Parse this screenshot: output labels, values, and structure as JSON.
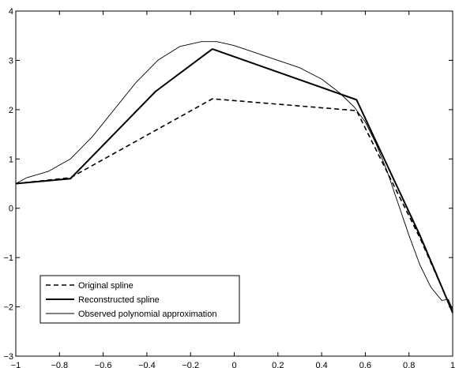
{
  "chart_data": {
    "type": "line",
    "title": "",
    "xlabel": "",
    "ylabel": "",
    "xlim": [
      -1,
      1
    ],
    "ylim": [
      -3,
      4
    ],
    "xticks": [
      -1,
      -0.8,
      -0.6,
      -0.4,
      -0.2,
      0,
      0.2,
      0.4,
      0.6,
      0.8,
      1
    ],
    "xtick_labels": [
      "−1",
      "−0.8",
      "−0.6",
      "−0.4",
      "−0.2",
      "0",
      "0.2",
      "0.4",
      "0.6",
      "0.8",
      "1"
    ],
    "yticks": [
      -3,
      -2,
      -1,
      0,
      1,
      2,
      3,
      4
    ],
    "ytick_labels": [
      "−3",
      "−2",
      "−1",
      "0",
      "1",
      "2",
      "3",
      "4"
    ],
    "grid": false,
    "legend_position": "bottom-left",
    "series": [
      {
        "name": "Original spline",
        "style": "dashed",
        "color": "#000000",
        "x": [
          -1.0,
          -0.75,
          -0.1,
          0.56,
          0.85,
          1.0
        ],
        "y": [
          0.5,
          0.62,
          2.22,
          1.98,
          -0.6,
          -2.1
        ]
      },
      {
        "name": "Reconstructed spline",
        "style": "solid-thick",
        "color": "#000000",
        "x": [
          -1.0,
          -0.75,
          -0.36,
          -0.1,
          0.56,
          0.85,
          1.0
        ],
        "y": [
          0.5,
          0.6,
          2.37,
          3.23,
          2.2,
          -0.55,
          -2.12
        ]
      },
      {
        "name": "Observed polynomial approximation",
        "style": "solid-thin",
        "color": "#000000",
        "x": [
          -1.0,
          -0.95,
          -0.85,
          -0.75,
          -0.65,
          -0.55,
          -0.45,
          -0.35,
          -0.25,
          -0.15,
          -0.08,
          0.0,
          0.1,
          0.2,
          0.3,
          0.4,
          0.48,
          0.55,
          0.6,
          0.65,
          0.7,
          0.75,
          0.8,
          0.85,
          0.9,
          0.95,
          0.98,
          1.0
        ],
        "y": [
          0.5,
          0.62,
          0.75,
          1.0,
          1.45,
          2.0,
          2.55,
          3.0,
          3.28,
          3.38,
          3.38,
          3.3,
          3.15,
          3.0,
          2.85,
          2.62,
          2.35,
          2.05,
          1.75,
          1.3,
          0.75,
          0.1,
          -0.55,
          -1.15,
          -1.6,
          -1.87,
          -1.85,
          -2.05
        ]
      }
    ]
  }
}
